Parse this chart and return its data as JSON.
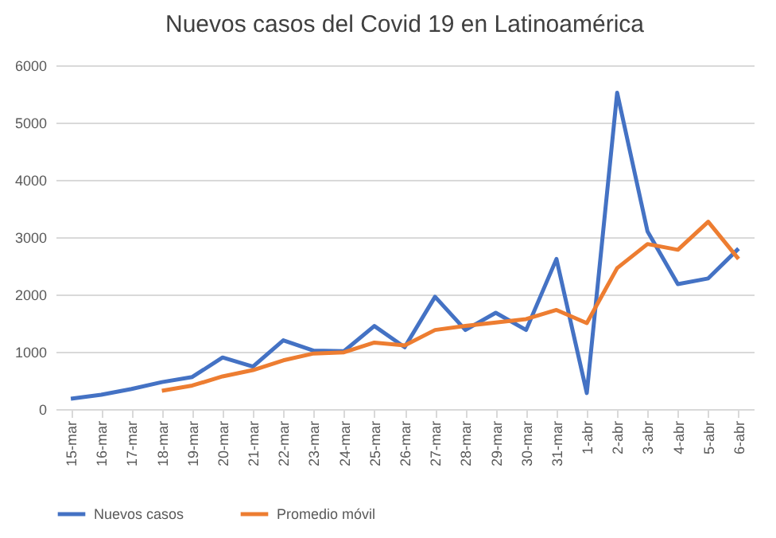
{
  "chart_data": {
    "type": "line",
    "title": "Nuevos casos del Covid 19 en Latinoamérica",
    "categories": [
      "15-mar",
      "16-mar",
      "17-mar",
      "18-mar",
      "19-mar",
      "20-mar",
      "21-mar",
      "22-mar",
      "23-mar",
      "24-mar",
      "25-mar",
      "26-mar",
      "27-mar",
      "28-mar",
      "29-mar",
      "30-mar",
      "31-mar",
      "1-abr",
      "2-abr",
      "3-abr",
      "4-abr",
      "5-abr",
      "6-abr"
    ],
    "series": [
      {
        "name": "Nuevos casos",
        "color": "#4472c4",
        "values": [
          180,
          250,
          350,
          470,
          560,
          900,
          740,
          1200,
          1020,
          1010,
          1450,
          1080,
          1960,
          1380,
          1680,
          1380,
          2620,
          280,
          5520,
          3100,
          2180,
          2280,
          2800
        ]
      },
      {
        "name": "Promedio móvil",
        "color": "#ed7d31",
        "values": [
          null,
          null,
          null,
          320,
          410,
          570,
          680,
          850,
          970,
          990,
          1160,
          1110,
          1380,
          1450,
          1510,
          1570,
          1730,
          1500,
          2460,
          2880,
          2780,
          3270,
          2620
        ]
      }
    ],
    "ylim": [
      0,
      6000
    ],
    "yticks": [
      0,
      1000,
      2000,
      3000,
      4000,
      5000,
      6000
    ],
    "grid": "y",
    "legend": "bottom",
    "marker": "none",
    "line_style": "solid"
  }
}
